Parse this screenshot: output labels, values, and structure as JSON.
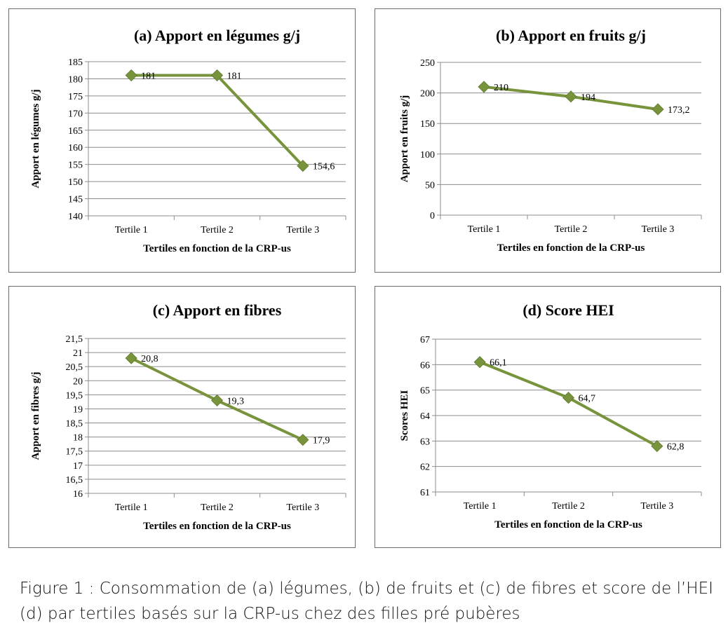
{
  "caption": "Figure 1 : Consommation de (a) légumes, (b) de fruits et (c) de fibres et score de l’HEI (d) par tertiles basés sur la CRP-us chez des filles pré pubères",
  "series_color": "#77933c",
  "chart_data": [
    {
      "type": "line",
      "title": "(a) Apport en légumes g/j",
      "xlabel": "Tertiles en fonction de la CRP-us",
      "ylabel": "Apport en légumes g/j",
      "categories": [
        "Tertile 1",
        "Tertile 2",
        "Tertile 3"
      ],
      "values": [
        181,
        181,
        154.6
      ],
      "value_labels": [
        "181",
        "181",
        "154,6"
      ],
      "ylim": [
        140,
        185
      ],
      "yticks": [
        140,
        145,
        150,
        155,
        160,
        165,
        170,
        175,
        180,
        185
      ],
      "ytick_labels": [
        "140",
        "145",
        "150",
        "155",
        "160",
        "165",
        "170",
        "175",
        "180",
        "185"
      ],
      "grid": true
    },
    {
      "type": "line",
      "title": "(b) Apport en fruits g/j",
      "xlabel": "Tertiles en fonction de la CRP-us",
      "ylabel": "Apport en fruits g/j",
      "categories": [
        "Tertile 1",
        "Tertile 2",
        "Tertile 3"
      ],
      "values": [
        210,
        194,
        173.2
      ],
      "value_labels": [
        "210",
        "194",
        "173,2"
      ],
      "ylim": [
        0,
        250
      ],
      "yticks": [
        0,
        50,
        100,
        150,
        200,
        250
      ],
      "ytick_labels": [
        "0",
        "50",
        "100",
        "150",
        "200",
        "250"
      ],
      "grid": true
    },
    {
      "type": "line",
      "title": "(c) Apport en fibres",
      "xlabel": "Tertiles en fonction de la CRP-us",
      "ylabel": "Apport en fibres g/j",
      "categories": [
        "Tertile 1",
        "Tertile 2",
        "Tertile 3"
      ],
      "values": [
        20.8,
        19.3,
        17.9
      ],
      "value_labels": [
        "20,8",
        "19,3",
        "17,9"
      ],
      "ylim": [
        16,
        21.5
      ],
      "yticks": [
        16,
        16.5,
        17,
        17.5,
        18,
        18.5,
        19,
        19.5,
        20,
        20.5,
        21,
        21.5
      ],
      "ytick_labels": [
        "16",
        "16,5",
        "17",
        "17,5",
        "18",
        "18,5",
        "19",
        "19,5",
        "20",
        "20,5",
        "21",
        "21,5"
      ],
      "grid": true
    },
    {
      "type": "line",
      "title": "(d) Score HEI",
      "xlabel": "Tertiles en fonction de la CRP-us",
      "ylabel": "Scores HEI",
      "categories": [
        "Tertile 1",
        "Tertile 2",
        "Tertile 3"
      ],
      "values": [
        66.1,
        64.7,
        62.8
      ],
      "value_labels": [
        "66,1",
        "64,7",
        "62,8"
      ],
      "ylim": [
        61,
        67
      ],
      "yticks": [
        61,
        62,
        63,
        64,
        65,
        66,
        67
      ],
      "ytick_labels": [
        "61",
        "62",
        "63",
        "64",
        "65",
        "66",
        "67"
      ],
      "grid": true
    }
  ]
}
